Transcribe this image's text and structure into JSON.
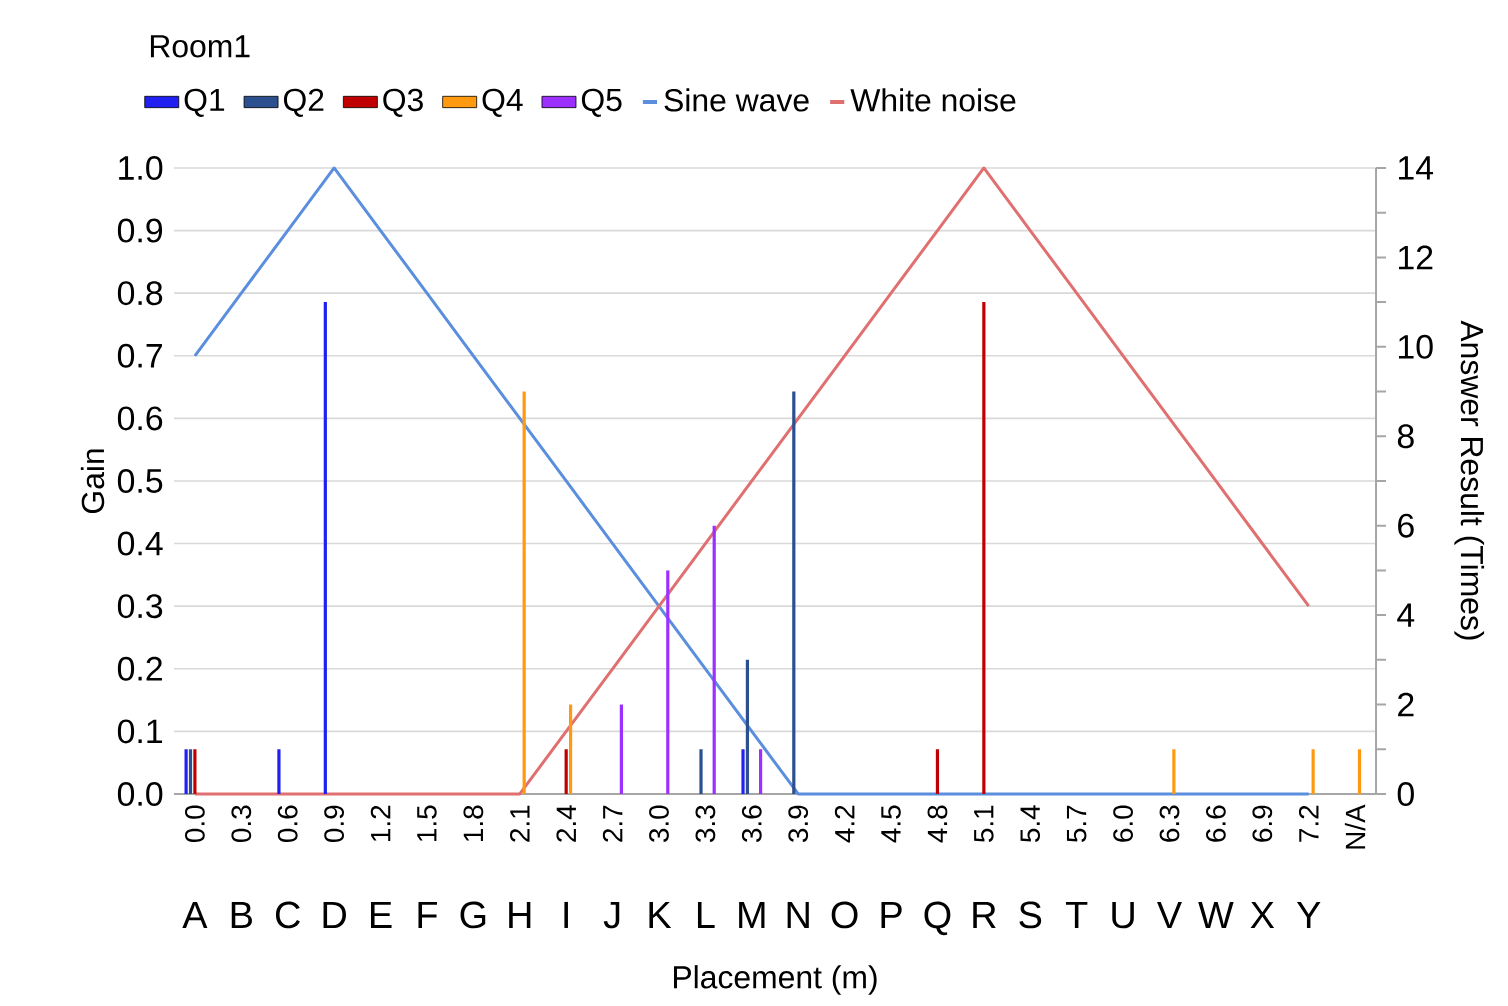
{
  "chart_data": {
    "type": "bar",
    "legend_title": "Room1",
    "xlabel": "Placement (m)",
    "ylabel": "Gain",
    "y2label": "Answer Result (Times)",
    "categories": [
      "0.0",
      "0.3",
      "0.6",
      "0.9",
      "1.2",
      "1.5",
      "1.8",
      "2.1",
      "2.4",
      "2.7",
      "3.0",
      "3.3",
      "3.6",
      "3.9",
      "4.2",
      "4.5",
      "4.8",
      "5.1",
      "5.4",
      "5.7",
      "6.0",
      "6.3",
      "6.6",
      "6.9",
      "7.2",
      "N/A"
    ],
    "series": [
      {
        "name": "Q1",
        "color": "#2020f0",
        "axis": "y2",
        "values": [
          1,
          null,
          1,
          11,
          null,
          null,
          null,
          null,
          null,
          null,
          null,
          null,
          1,
          null,
          null,
          null,
          null,
          null,
          null,
          null,
          null,
          null,
          null,
          null,
          null,
          null
        ]
      },
      {
        "name": "Q2",
        "color": "#2b4f8f",
        "axis": "y2",
        "values": [
          1,
          null,
          null,
          null,
          null,
          null,
          null,
          null,
          null,
          null,
          null,
          1,
          3,
          9,
          null,
          null,
          null,
          null,
          null,
          null,
          null,
          null,
          null,
          null,
          null,
          null
        ]
      },
      {
        "name": "Q3",
        "color": "#c00000",
        "axis": "y2",
        "values": [
          1,
          null,
          null,
          null,
          null,
          null,
          null,
          null,
          1,
          null,
          null,
          null,
          null,
          null,
          null,
          null,
          1,
          11,
          null,
          null,
          null,
          null,
          null,
          null,
          null,
          null
        ]
      },
      {
        "name": "Q4",
        "color": "#ff9a10",
        "axis": "y2",
        "values": [
          null,
          null,
          null,
          null,
          null,
          null,
          null,
          9,
          2,
          null,
          null,
          null,
          null,
          null,
          null,
          null,
          null,
          null,
          null,
          null,
          null,
          1,
          null,
          null,
          1,
          1
        ]
      },
      {
        "name": "Q5",
        "color": "#9b30ff",
        "axis": "y2",
        "values": [
          null,
          null,
          null,
          null,
          null,
          null,
          null,
          null,
          null,
          2,
          5,
          6,
          1,
          null,
          null,
          null,
          null,
          null,
          null,
          null,
          null,
          null,
          null,
          null,
          null,
          null
        ]
      },
      {
        "name": "Sine wave",
        "type": "line",
        "color": "#5b8fde",
        "values": [
          0.7,
          0.8,
          0.9,
          1.0,
          0.9,
          0.8,
          0.7,
          0.6,
          0.5,
          0.4,
          0.3,
          0.2,
          0.1,
          0.0,
          0.0,
          0.0,
          0.0,
          0.0,
          0.0,
          0.0,
          0.0,
          0.0,
          0.0,
          0.0,
          0.0,
          null
        ]
      },
      {
        "name": "White noise",
        "type": "line",
        "color": "#e07070",
        "values": [
          0.0,
          0.0,
          0.0,
          0.0,
          0.0,
          0.0,
          0.0,
          0.0,
          0.1,
          0.2,
          0.3,
          0.4,
          0.5,
          0.6,
          0.7,
          0.8,
          0.9,
          1.0,
          0.9,
          0.8,
          0.7,
          0.6,
          0.5,
          0.4,
          0.3,
          null
        ]
      }
    ],
    "ylim": [
      0,
      1
    ],
    "yticks": [
      {
        "value": 0,
        "label": "0.0"
      },
      0.1,
      0.2,
      0.3,
      0.4,
      0.5,
      0.6,
      0.7,
      0.8,
      0.9,
      {
        "value": 1,
        "label": "1.0"
      }
    ],
    "y2lim": [
      0,
      14
    ],
    "y2ticks": [
      0,
      {
        "value": 1,
        "label": null
      },
      2,
      {
        "value": 3,
        "label": null
      },
      4,
      {
        "value": 5,
        "label": null
      },
      6,
      {
        "value": 7,
        "label": null
      },
      8,
      {
        "value": 9,
        "label": null
      },
      10,
      {
        "value": 11,
        "label": null
      },
      12,
      {
        "value": 13,
        "label": null
      },
      14
    ],
    "grid": "y",
    "legend": "top left",
    "annotations": [
      "A",
      "B",
      "C",
      "D",
      "E",
      "F",
      "G",
      "H",
      "I",
      "J",
      "K",
      "L",
      "M",
      "N",
      "O",
      "P",
      "Q",
      "R",
      "S",
      "T",
      "U",
      "V",
      "W",
      "X",
      "Y"
    ]
  }
}
